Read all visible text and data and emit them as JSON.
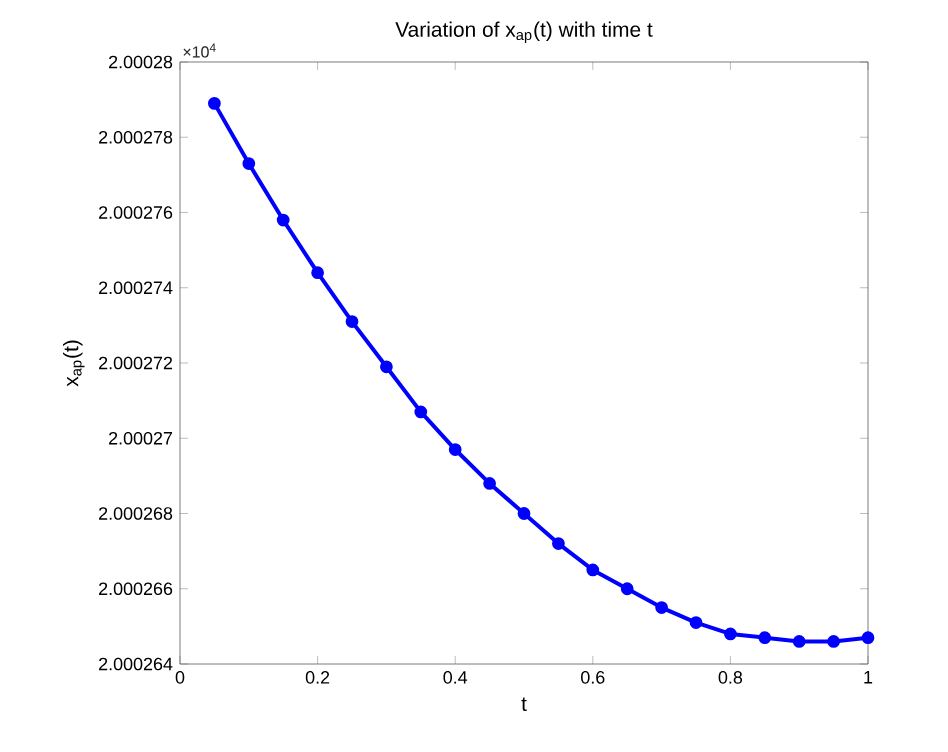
{
  "chart_data": {
    "type": "line",
    "title": "Variation of x$_{ap}$(t) with time t",
    "xlabel": "t",
    "ylabel": "x$_{ap}$(t)",
    "annotations": [
      "×10$^{4}$"
    ],
    "x": [
      0.05,
      0.1,
      0.15,
      0.2,
      0.25,
      0.3,
      0.35,
      0.4,
      0.45,
      0.5,
      0.55,
      0.6,
      0.65,
      0.7,
      0.75,
      0.8,
      0.85,
      0.9,
      0.95,
      1.0
    ],
    "series": [
      {
        "color": "#0000ff",
        "values": [
          2.0002789,
          2.0002773,
          2.0002758,
          2.0002744,
          2.0002731,
          2.0002719,
          2.0002707,
          2.0002697,
          2.0002688,
          2.000268,
          2.0002672,
          2.0002665,
          2.000266,
          2.0002655,
          2.0002651,
          2.0002648,
          2.0002647,
          2.0002646,
          2.0002646,
          2.0002647
        ]
      }
    ],
    "xlim": [
      0,
      1
    ],
    "xticks": [
      0,
      0.2,
      0.4,
      0.6,
      0.8,
      1
    ],
    "ylim": [
      2.000264,
      2.00028
    ],
    "yticks": [
      2.000264,
      2.000266,
      2.000268,
      2.00027,
      2.000272,
      2.000274,
      2.000276,
      2.000278,
      2.00028
    ],
    "grid": false,
    "legend": false,
    "marker": "circle",
    "line_style": "solid"
  }
}
